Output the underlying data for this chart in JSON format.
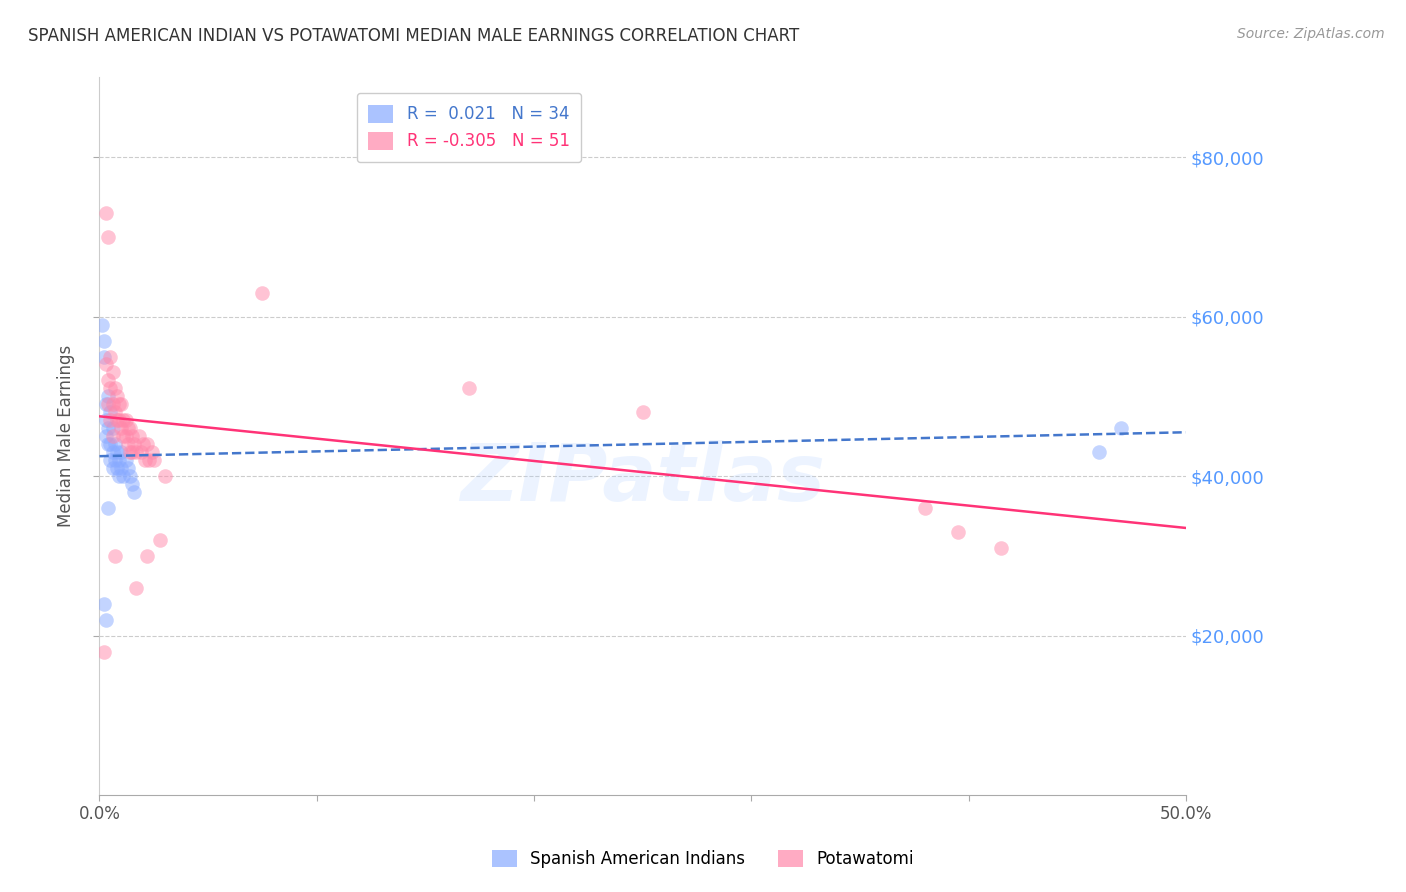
{
  "title": "SPANISH AMERICAN INDIAN VS POTAWATOMI MEDIAN MALE EARNINGS CORRELATION CHART",
  "source": "Source: ZipAtlas.com",
  "ylabel": "Median Male Earnings",
  "y_tick_values": [
    20000,
    40000,
    60000,
    80000
  ],
  "y_right_labels": [
    "$20,000",
    "$40,000",
    "$60,000",
    "$80,000"
  ],
  "xlim": [
    0.0,
    0.5
  ],
  "ylim": [
    0,
    90000
  ],
  "watermark": "ZIPatlas",
  "blue_scatter_x": [
    0.001,
    0.002,
    0.002,
    0.003,
    0.003,
    0.003,
    0.004,
    0.004,
    0.004,
    0.005,
    0.005,
    0.005,
    0.006,
    0.006,
    0.006,
    0.007,
    0.007,
    0.008,
    0.008,
    0.009,
    0.009,
    0.01,
    0.01,
    0.011,
    0.012,
    0.013,
    0.014,
    0.015,
    0.016,
    0.002,
    0.003,
    0.004,
    0.47,
    0.46
  ],
  "blue_scatter_y": [
    59000,
    57000,
    55000,
    49000,
    47000,
    45000,
    50000,
    46000,
    44000,
    48000,
    44000,
    42000,
    46000,
    43000,
    41000,
    44000,
    42000,
    43000,
    41000,
    42000,
    40000,
    43000,
    41000,
    40000,
    42000,
    41000,
    40000,
    39000,
    38000,
    24000,
    22000,
    36000,
    46000,
    43000
  ],
  "pink_scatter_x": [
    0.003,
    0.004,
    0.004,
    0.005,
    0.005,
    0.006,
    0.006,
    0.007,
    0.007,
    0.008,
    0.008,
    0.009,
    0.009,
    0.01,
    0.01,
    0.011,
    0.011,
    0.012,
    0.012,
    0.013,
    0.013,
    0.014,
    0.014,
    0.015,
    0.015,
    0.016,
    0.017,
    0.018,
    0.019,
    0.02,
    0.021,
    0.022,
    0.023,
    0.024,
    0.025,
    0.03,
    0.002,
    0.003,
    0.004,
    0.005,
    0.006,
    0.007,
    0.17,
    0.25,
    0.017,
    0.022,
    0.028,
    0.38,
    0.395,
    0.415,
    0.075
  ],
  "pink_scatter_y": [
    73000,
    70000,
    52000,
    55000,
    51000,
    53000,
    49000,
    51000,
    48000,
    50000,
    47000,
    49000,
    47000,
    49000,
    46000,
    47000,
    45000,
    47000,
    45000,
    46000,
    44000,
    46000,
    43000,
    45000,
    43000,
    44000,
    43000,
    45000,
    43000,
    44000,
    42000,
    44000,
    42000,
    43000,
    42000,
    40000,
    18000,
    54000,
    49000,
    47000,
    45000,
    30000,
    51000,
    48000,
    26000,
    30000,
    32000,
    36000,
    33000,
    31000,
    63000
  ],
  "blue_line_x": [
    0.0,
    0.5
  ],
  "blue_line_y": [
    42500,
    45500
  ],
  "pink_line_x": [
    0.0,
    0.5
  ],
  "pink_line_y": [
    47500,
    33500
  ],
  "bg_color": "#ffffff",
  "title_color": "#333333",
  "source_color": "#999999",
  "scatter_alpha": 0.5,
  "scatter_size": 110,
  "blue_color": "#88aaff",
  "pink_color": "#ff88aa",
  "blue_line_color": "#4477cc",
  "pink_line_color": "#ff3377",
  "grid_color": "#cccccc",
  "right_label_color": "#5599ff",
  "legend_r1": "R =  0.021   N = 34",
  "legend_r2": "R = -0.305   N = 51",
  "legend_label1": "Spanish American Indians",
  "legend_label2": "Potawatomi"
}
